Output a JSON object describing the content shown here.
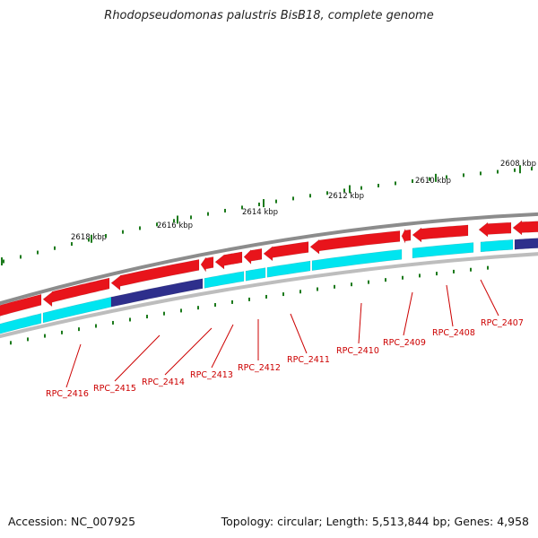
{
  "title": "Rhodopseudomonas palustris BisB18, complete genome",
  "footer": {
    "accession": "Accession: NC_007925",
    "summary": "Topology: circular; Length: 5,513,844 bp; Genes: 4,958"
  },
  "ticks": [
    {
      "label": "2608 kbp"
    },
    {
      "label": "2610 kbp"
    },
    {
      "label": "2612 kbp"
    },
    {
      "label": "2614 kbp"
    },
    {
      "label": "2616 kbp"
    },
    {
      "label": "2618 kbp"
    }
  ],
  "genes": [
    {
      "label": "RPC_2407"
    },
    {
      "label": "RPC_2408"
    },
    {
      "label": "RPC_2409"
    },
    {
      "label": "RPC_2410"
    },
    {
      "label": "RPC_2411"
    },
    {
      "label": "RPC_2412"
    },
    {
      "label": "RPC_2413"
    },
    {
      "label": "RPC_2414"
    },
    {
      "label": "RPC_2415"
    },
    {
      "label": "RPC_2416"
    }
  ],
  "colors": {
    "backbone": "#8c8c8c",
    "cds_forward": "#e8141b",
    "cds_reverse": "#00e5f0",
    "cds_highlight": "#2e2f8c",
    "tick": "#1c7a1c",
    "label": "#cc0000"
  }
}
